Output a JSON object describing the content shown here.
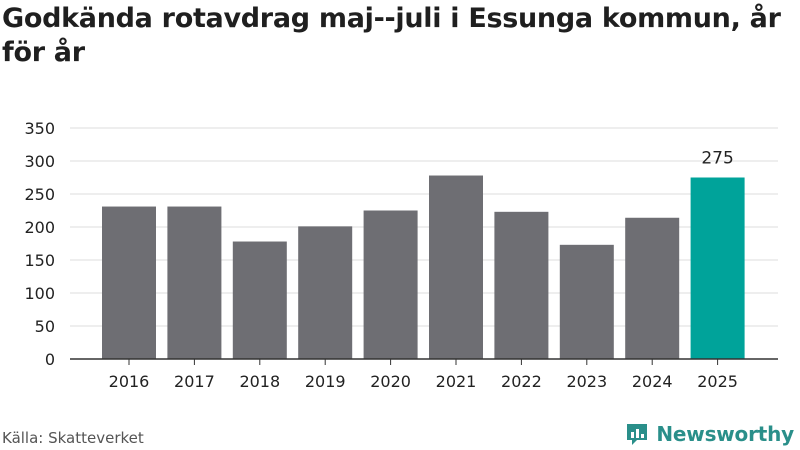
{
  "title": "Godkända rotavdrag maj--juli i Essunga kommun, år för år",
  "source": "Källa: Skatteverket",
  "brand": {
    "name": "Newsworthy",
    "icon": "newsworthy-logo-icon"
  },
  "colors": {
    "bar": "#6e6e73",
    "highlight": "#00a39a",
    "grid": "#dddddd",
    "axis": "#333333"
  },
  "chart_data": {
    "type": "bar",
    "categories": [
      "2016",
      "2017",
      "2018",
      "2019",
      "2020",
      "2021",
      "2022",
      "2023",
      "2024",
      "2025"
    ],
    "values": [
      231,
      231,
      178,
      201,
      225,
      278,
      223,
      173,
      214,
      275
    ],
    "highlight_index": 9,
    "data_labels": [
      {
        "index": 9,
        "text": "275"
      }
    ],
    "ylim": [
      0,
      350
    ],
    "yticks": [
      0,
      50,
      100,
      150,
      200,
      250,
      300,
      350
    ],
    "grid": true,
    "xlabel": "",
    "ylabel": ""
  }
}
